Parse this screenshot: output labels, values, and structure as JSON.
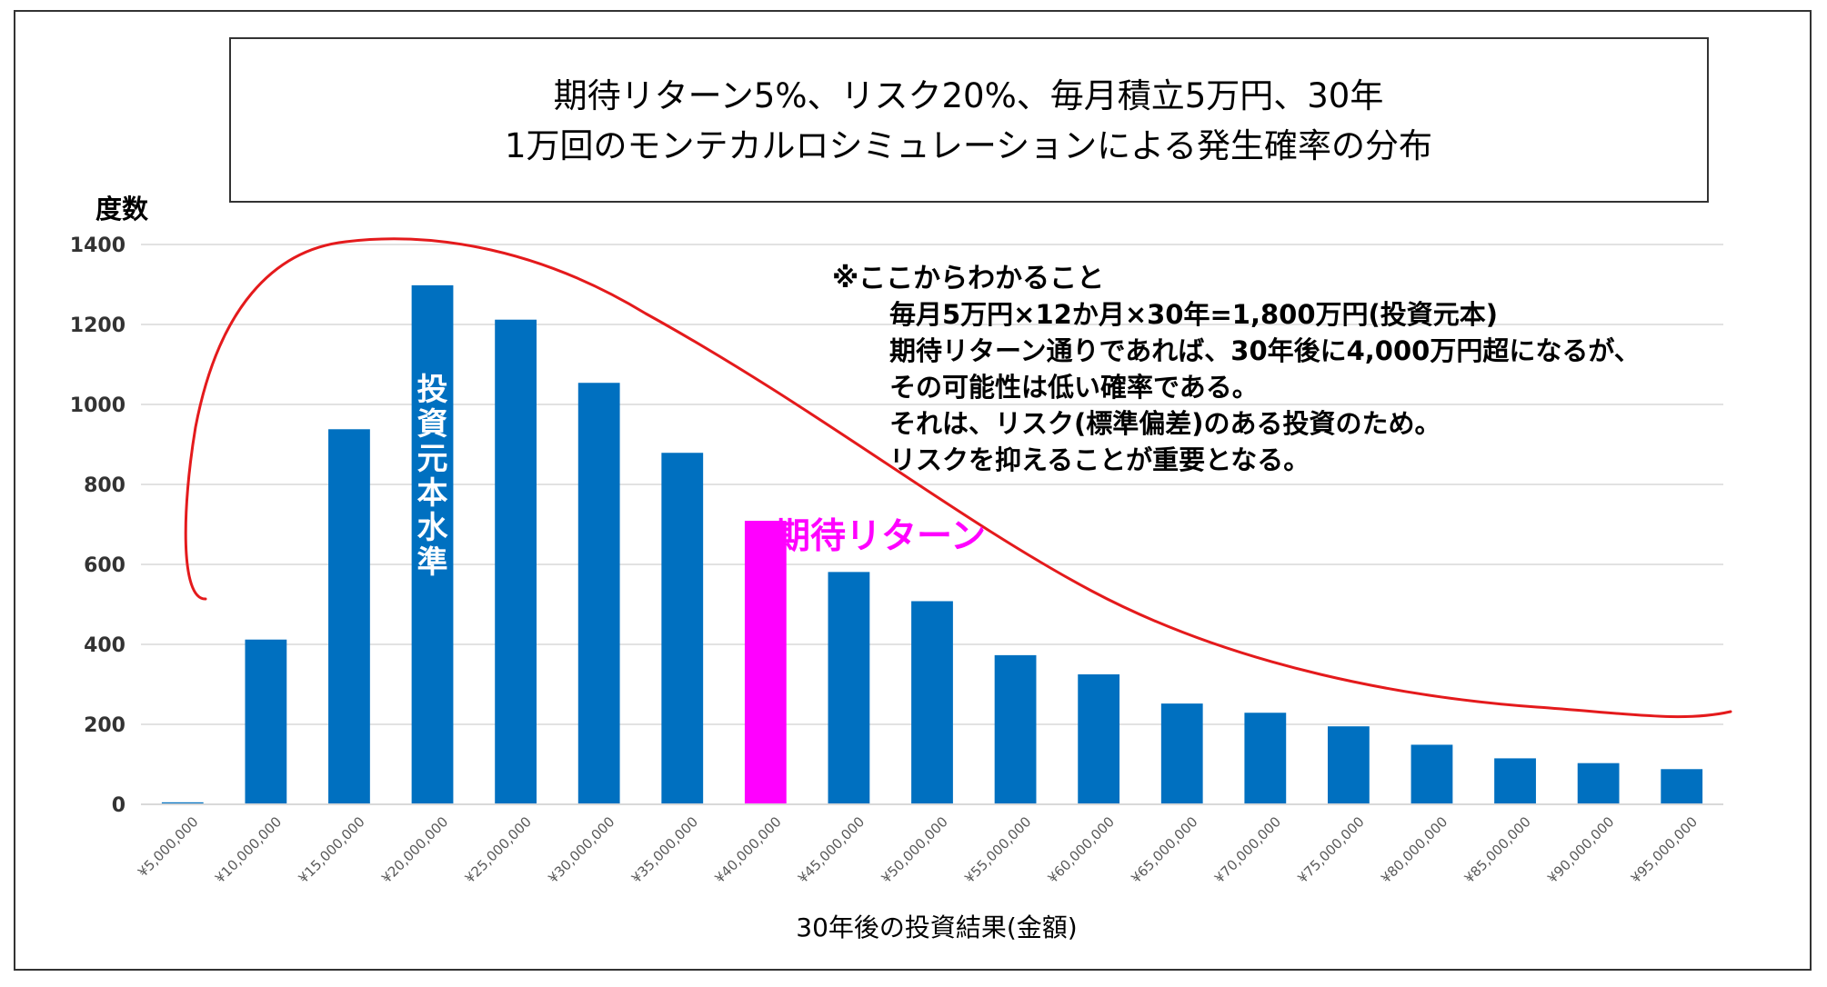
{
  "chart_data": {
    "type": "bar",
    "title_lines": [
      "期待リターン5%、リスク20%、毎月積立5万円、30年",
      "1万回のモンテカルロシミュレーションによる発生確率の分布"
    ],
    "ylabel": "度数",
    "xlabel": "30年後の投資結果(金額)",
    "ylim": [
      0,
      1400
    ],
    "yticks": [
      "0",
      "200",
      "400",
      "600",
      "800",
      "1000",
      "1200",
      "1400"
    ],
    "grid": true,
    "categories": [
      "¥5,000,000",
      "¥10,000,000",
      "¥15,000,000",
      "¥20,000,000",
      "¥25,000,000",
      "¥30,000,000",
      "¥35,000,000",
      "¥40,000,000",
      "¥45,000,000",
      "¥50,000,000",
      "¥55,000,000",
      "¥60,000,000",
      "¥65,000,000",
      "¥70,000,000",
      "¥75,000,000",
      "¥80,000,000",
      "¥85,000,000",
      "¥90,000,000",
      "¥95,000,000"
    ],
    "values": [
      5,
      412,
      938,
      1298,
      1212,
      1054,
      879,
      709,
      581,
      508,
      373,
      325,
      252,
      229,
      195,
      149,
      115,
      103,
      88
    ],
    "bar_color": "#0070c0",
    "highlight_index": 7,
    "highlight_color": "#ff00ff",
    "curve_color": "#e41a1c",
    "annotations": {
      "principal_level": "投資元本水準",
      "expected_return": "期待リターン"
    },
    "notes_header": "※ここからわかること",
    "notes": [
      "毎月5万円×12か月×30年=1,800万円(投資元本)",
      "期待リターン通りであれば、30年後に4,000万円超になるが、",
      "その可能性は低い確率である。",
      "それは、リスク(標準偏差)のある投資のため。",
      "リスクを抑えることが重要となる。"
    ]
  }
}
